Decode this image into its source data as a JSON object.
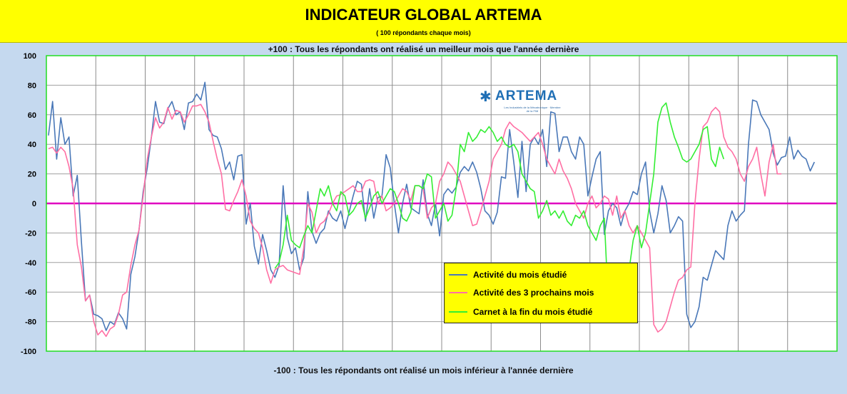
{
  "header": {
    "title": "INDICATEUR GLOBAL  ARTEMA",
    "subtitle": "( 100 répondants chaque mois)"
  },
  "notes": {
    "top": "+100 :  Tous les répondants ont réalisé un  meilleur mois que l'année dernière",
    "bottom": "-100 : Tous les répondants ont réalisé un mois inférieur à l'année dernière"
  },
  "logo": {
    "name": "ARTEMA",
    "tagline": "Les Industriels de la Mécatronique · Membre de la FIM",
    "icon": "star-icon"
  },
  "chart_data": {
    "type": "line",
    "ylim": [
      -100,
      100
    ],
    "yticks": [
      100,
      80,
      60,
      40,
      20,
      0,
      -20,
      -40,
      -60,
      -80,
      -100
    ],
    "grid": true,
    "legend_position": "bottom-right",
    "zero_line_color": "#e000c0",
    "x_count": 192,
    "x_start": "2006-01",
    "x_frequency": "monthly",
    "series": [
      {
        "name": "Activité du mois étudié",
        "color": "#4a78b8",
        "start_index": 0,
        "values": [
          46,
          69,
          30,
          58,
          40,
          45,
          5,
          19,
          -26,
          -66,
          -62,
          -75,
          -76,
          -78,
          -86,
          -80,
          -82,
          -74,
          -78,
          -85,
          -48,
          -36,
          -18,
          8,
          24,
          45,
          69,
          55,
          54,
          64,
          69,
          60,
          62,
          50,
          68,
          69,
          74,
          70,
          82,
          50,
          46,
          45,
          37,
          23,
          28,
          16,
          32,
          33,
          -14,
          0,
          -29,
          -41,
          -21,
          -32,
          -45,
          -50,
          -42,
          12,
          -23,
          -34,
          -30,
          -45,
          -37,
          8,
          -19,
          -27,
          -20,
          -17,
          -5,
          -10,
          -12,
          -5,
          -17,
          -6,
          5,
          15,
          13,
          -12,
          10,
          -10,
          4,
          5,
          33,
          24,
          0,
          -20,
          0,
          13,
          -3,
          -5,
          -7,
          16,
          -7,
          -15,
          0,
          -22,
          6,
          10,
          7,
          11,
          21,
          25,
          22,
          28,
          21,
          10,
          -5,
          -8,
          -14,
          -6,
          18,
          17,
          50,
          28,
          4,
          42,
          8,
          40,
          45,
          40,
          50,
          25,
          62,
          61,
          35,
          45,
          45,
          35,
          30,
          45,
          40,
          5,
          18,
          30,
          35,
          -21,
          -5,
          0,
          -3,
          -15,
          -5,
          0,
          8,
          6,
          20,
          28,
          -5,
          -20,
          -7,
          12,
          2,
          -20,
          -15,
          -9,
          -12,
          -75,
          -84,
          -80,
          -70,
          -50,
          -52,
          -42,
          -32,
          -35,
          -38,
          -15,
          -5,
          -12,
          -8,
          -5,
          40,
          70,
          69,
          60,
          55,
          50,
          34,
          26,
          31,
          32,
          45,
          30,
          36,
          32,
          30,
          22,
          28
        ],
        "_note": "monthly series"
      },
      {
        "name": "Activité des 3 prochains mois",
        "color": "#ff6fa4",
        "start_index": 0,
        "values": [
          37,
          38,
          34,
          38,
          35,
          25,
          10,
          -28,
          -43,
          -66,
          -62,
          -80,
          -89,
          -86,
          -90,
          -85,
          -83,
          -75,
          -62,
          -60,
          -42,
          -28,
          -18,
          5,
          30,
          45,
          58,
          51,
          55,
          65,
          57,
          63,
          62,
          55,
          60,
          66,
          66,
          67,
          62,
          55,
          42,
          30,
          20,
          -4,
          -5,
          2,
          8,
          16,
          5,
          -12,
          -17,
          -20,
          -30,
          -45,
          -54,
          -45,
          -43,
          -42,
          -45,
          -46,
          -47,
          -48,
          -30,
          0,
          -6,
          -20,
          -14,
          -12,
          -7,
          0,
          5,
          6,
          8,
          10,
          12,
          8,
          8,
          15,
          16,
          15,
          0,
          5,
          -5,
          -3,
          0,
          5,
          10,
          8,
          2,
          12,
          12,
          10,
          -10,
          -3,
          0,
          15,
          20,
          28,
          25,
          20,
          15,
          5,
          -5,
          -15,
          -14,
          -5,
          5,
          15,
          30,
          35,
          40,
          50,
          55,
          52,
          50,
          48,
          45,
          42,
          45,
          48,
          40,
          30,
          25,
          20,
          30,
          22,
          17,
          10,
          0,
          -5,
          -10,
          0,
          5,
          -3,
          0,
          5,
          3,
          -8,
          5,
          -10,
          -5,
          -15,
          -20,
          -15,
          -20,
          -25,
          -30,
          -82,
          -87,
          -85,
          -80,
          -70,
          -60,
          -52,
          -50,
          -45,
          -43,
          0,
          30,
          52,
          55,
          62,
          65,
          62,
          45,
          38,
          35,
          30,
          20,
          15,
          25,
          30,
          38,
          20,
          5,
          28,
          40,
          20,
          20
        ],
        "_note": "monthly series"
      },
      {
        "name": "Carnet  à la fin  du mois étudié",
        "color": "#33ee33",
        "start_index": 55,
        "values": [
          -44,
          -40,
          -28,
          -8,
          -25,
          -28,
          -30,
          -22,
          -15,
          -20,
          -5,
          10,
          5,
          12,
          0,
          -5,
          8,
          5,
          -8,
          -5,
          0,
          2,
          -10,
          -3,
          5,
          8,
          0,
          5,
          10,
          8,
          0,
          -10,
          -12,
          -6,
          12,
          12,
          10,
          20,
          18,
          -10,
          -5,
          0,
          -12,
          -8,
          10,
          40,
          35,
          48,
          42,
          45,
          50,
          48,
          52,
          48,
          42,
          45,
          40,
          38,
          40,
          35,
          20,
          15,
          10,
          8,
          -10,
          -5,
          2,
          -8,
          -5,
          -10,
          -5,
          -12,
          -15,
          -8,
          -10,
          -5,
          -15,
          -20,
          -25,
          -15,
          -10,
          -70,
          -80,
          -78,
          -75,
          -55,
          -45,
          -25,
          -15,
          -30,
          -20,
          0,
          20,
          55,
          65,
          68,
          55,
          45,
          38,
          30,
          28,
          30,
          35,
          40,
          50,
          52,
          30,
          25,
          38,
          30
        ],
        "_note": "monthly series starting mid-2010"
      }
    ]
  },
  "legend": {
    "items": [
      {
        "label": "Activité du mois étudié",
        "color": "#4a78b8"
      },
      {
        "label": "Activité des 3 prochains mois",
        "color": "#ff6fa4"
      },
      {
        "label": "Carnet  à la fin  du mois étudié",
        "color": "#33ee33"
      }
    ]
  }
}
